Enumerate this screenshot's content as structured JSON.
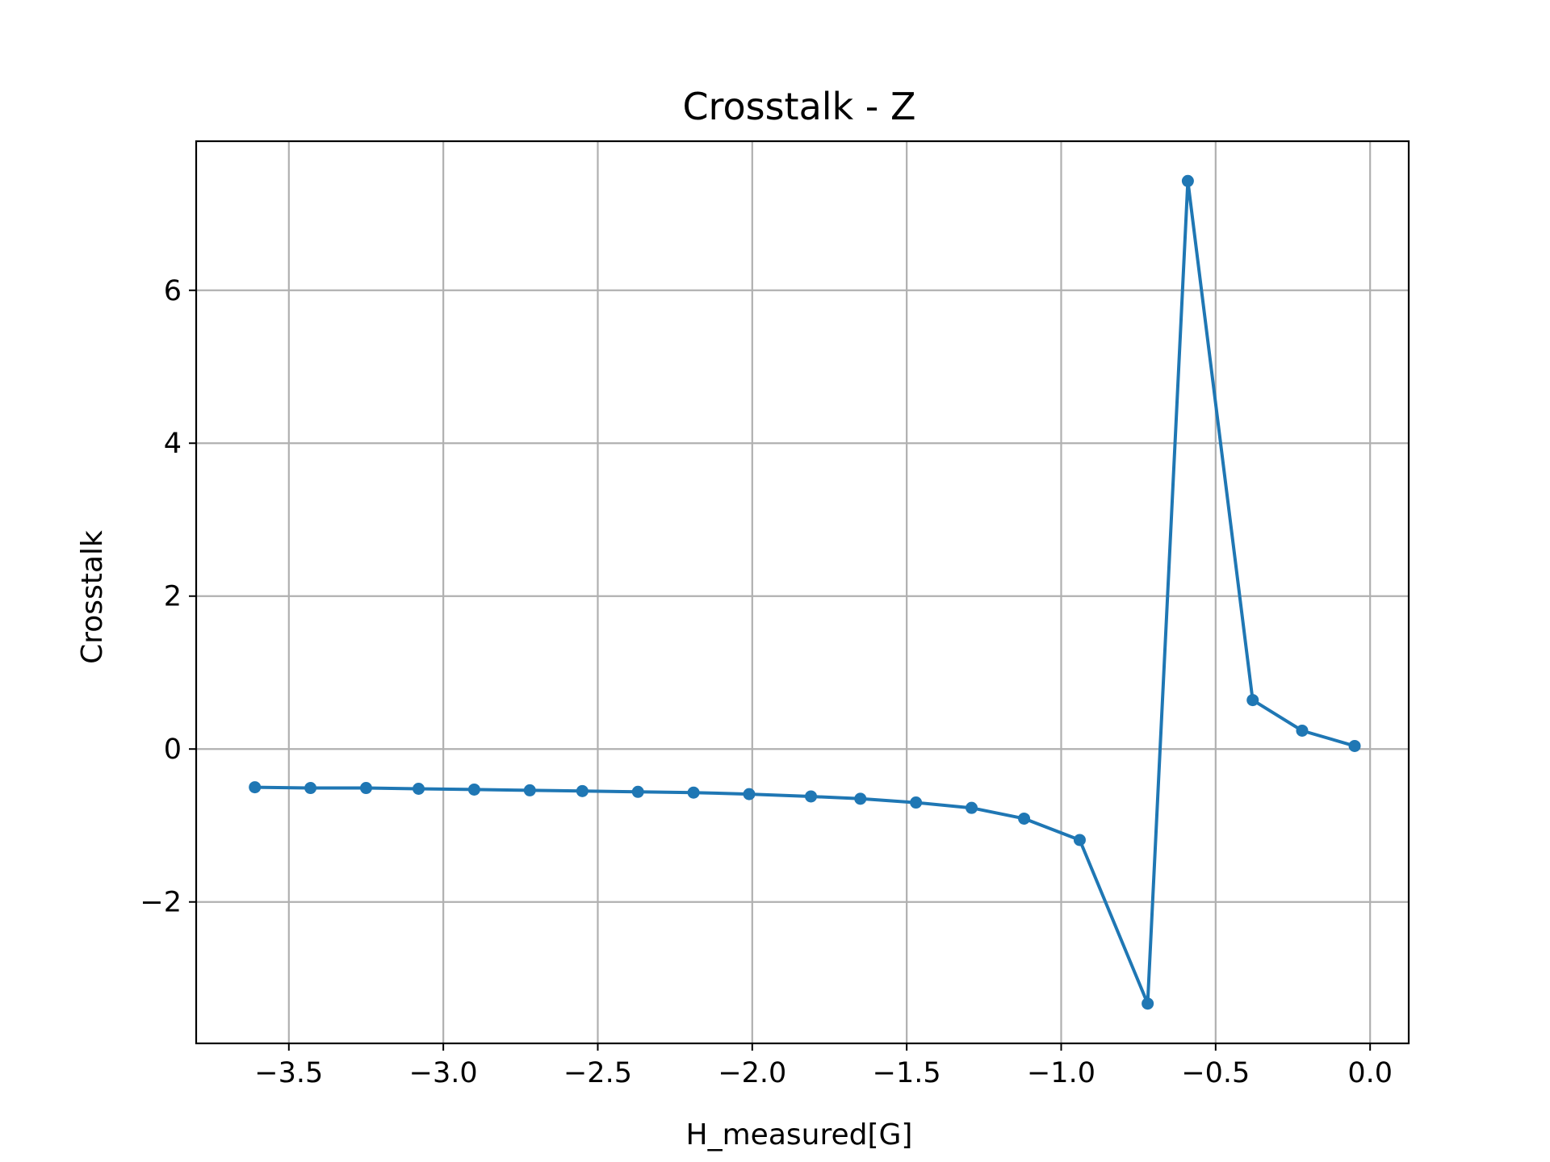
{
  "chart_data": {
    "type": "line",
    "title": "Crosstalk - Z",
    "xlabel": "H_measured[G]",
    "ylabel": "Crosstalk",
    "xlim": [
      -3.8,
      0.125
    ],
    "ylim": [
      -3.85,
      7.95
    ],
    "xticks": [
      -3.5,
      -3.0,
      -2.5,
      -2.0,
      -1.5,
      -1.0,
      -0.5,
      0.0
    ],
    "xtick_labels": [
      "−3.5",
      "−3.0",
      "−2.5",
      "−2.0",
      "−1.5",
      "−1.0",
      "−0.5",
      "0.0"
    ],
    "yticks": [
      -2,
      0,
      2,
      4,
      6
    ],
    "ytick_labels": [
      "−2",
      "0",
      "2",
      "4",
      "6"
    ],
    "grid": true,
    "series": [
      {
        "color": "#1f77b4",
        "marker": "circle",
        "x": [
          -3.61,
          -3.43,
          -3.25,
          -3.08,
          -2.9,
          -2.72,
          -2.55,
          -2.37,
          -2.19,
          -2.01,
          -1.81,
          -1.65,
          -1.47,
          -1.29,
          -1.12,
          -0.94,
          -0.72,
          -0.59,
          -0.38,
          -0.22,
          -0.05
        ],
        "y": [
          -0.5,
          -0.51,
          -0.51,
          -0.52,
          -0.53,
          -0.54,
          -0.55,
          -0.56,
          -0.57,
          -0.59,
          -0.62,
          -0.65,
          -0.7,
          -0.77,
          -0.91,
          -1.19,
          -3.33,
          7.43,
          0.64,
          0.24,
          0.04
        ]
      }
    ]
  }
}
